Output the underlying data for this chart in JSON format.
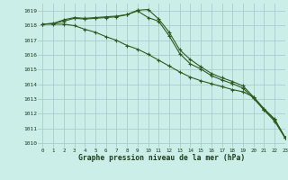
{
  "title": "Graphe pression niveau de la mer (hPa)",
  "background_color": "#cceee8",
  "grid_color": "#aacccc",
  "line_color": "#2d5a1e",
  "xlim": [
    -0.5,
    23
  ],
  "ylim": [
    1009.7,
    1019.5
  ],
  "yticks": [
    1010,
    1011,
    1012,
    1013,
    1014,
    1015,
    1016,
    1017,
    1018,
    1019
  ],
  "xticks": [
    0,
    1,
    2,
    3,
    4,
    5,
    6,
    7,
    8,
    9,
    10,
    11,
    12,
    13,
    14,
    15,
    16,
    17,
    18,
    19,
    20,
    21,
    22,
    23
  ],
  "x": [
    0,
    1,
    2,
    3,
    4,
    5,
    6,
    7,
    8,
    9,
    10,
    11,
    12,
    13,
    14,
    15,
    16,
    17,
    18,
    19,
    20,
    21,
    22,
    23
  ],
  "line1": [
    1018.1,
    1018.15,
    1018.3,
    1018.5,
    1018.45,
    1018.5,
    1018.55,
    1018.6,
    1018.75,
    1019.0,
    1018.55,
    1018.3,
    1017.3,
    1016.1,
    1015.4,
    1015.05,
    1014.6,
    1014.3,
    1014.05,
    1013.75,
    1013.05,
    1012.25,
    1011.5,
    1010.35
  ],
  "line2": [
    1018.1,
    1018.15,
    1018.4,
    1018.55,
    1018.5,
    1018.55,
    1018.6,
    1018.65,
    1018.75,
    1019.05,
    1019.1,
    1018.45,
    1017.55,
    1016.35,
    1015.7,
    1015.2,
    1014.75,
    1014.45,
    1014.2,
    1013.9,
    1013.15,
    1012.35,
    1011.65,
    1010.4
  ],
  "line3": [
    1018.1,
    1018.1,
    1018.1,
    1018.0,
    1017.75,
    1017.55,
    1017.25,
    1017.0,
    1016.65,
    1016.4,
    1016.05,
    1015.65,
    1015.25,
    1014.85,
    1014.5,
    1014.25,
    1014.05,
    1013.85,
    1013.65,
    1013.5,
    1013.15,
    1012.3,
    1011.6,
    1010.35
  ]
}
